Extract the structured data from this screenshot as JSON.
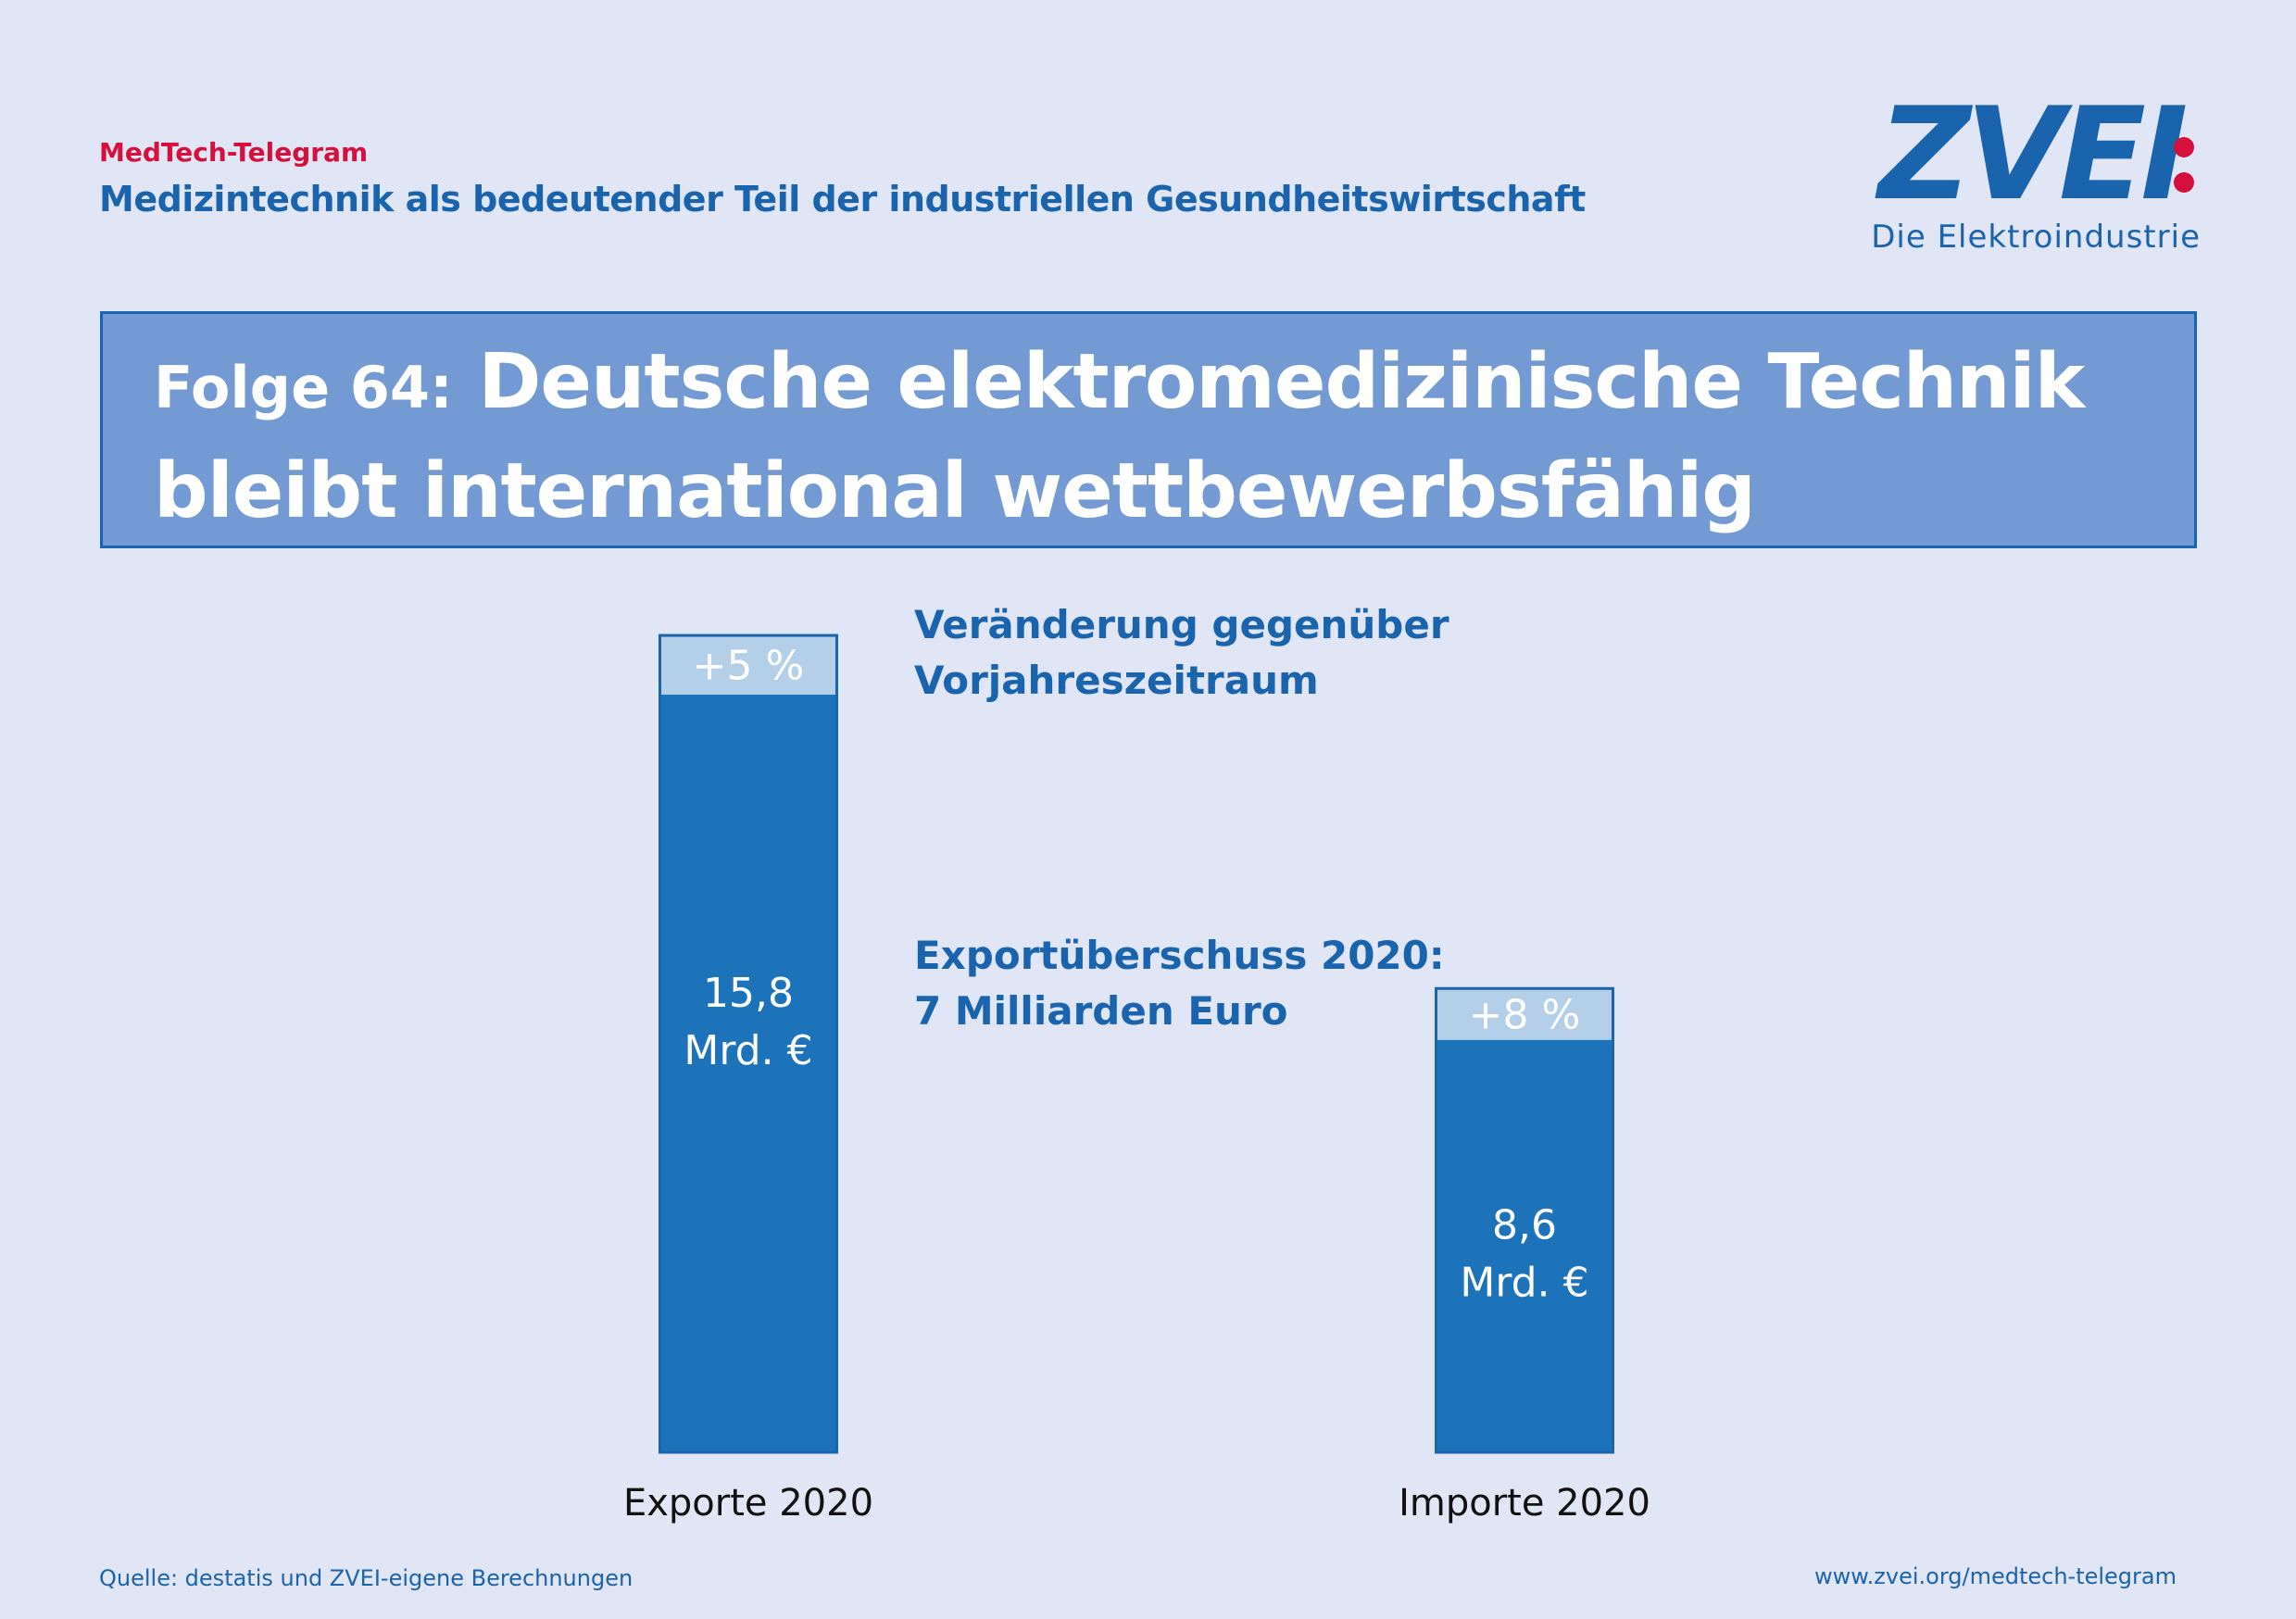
{
  "header": {
    "kicker": "MedTech-Telegram",
    "subtitle": "Medizintechnik als bedeutender Teil der industriellen Gesundheitswirtschaft"
  },
  "logo": {
    "wordmark": "ZVEI",
    "tagline": "Die Elektroindustrie"
  },
  "title": {
    "prefix": "Folge 64:",
    "text": "Deutsche elektromedizinische Technik bleibt international wettbewerbsfähig"
  },
  "notes": {
    "change_line1": "Veränderung gegenüber",
    "change_line2": "Vorjahreszeitraum",
    "surplus_line1": "Exportüberschuss 2020:",
    "surplus_line2": "7 Milliarden Euro"
  },
  "chart_data": {
    "type": "bar",
    "stacked": true,
    "categories": [
      "Exporte 2020",
      "Importe 2020"
    ],
    "values": [
      15.8,
      8.6
    ],
    "value_labels": [
      [
        "15,8",
        "Mrd. €"
      ],
      [
        "8,6",
        "Mrd. €"
      ]
    ],
    "change_labels": [
      "+5 %",
      "+8 %"
    ],
    "change_percent": [
      5,
      8
    ],
    "unit": "Mrd. €",
    "colors": {
      "value": "#1c73ba",
      "change": "#b3d0e8",
      "outline": "#1a63ad"
    },
    "grid": false,
    "axes_visible": false
  },
  "footer": {
    "source": "Quelle: destatis und ZVEI-eigene Berechnungen",
    "website": "www.zvei.org/medtech-telegram"
  }
}
